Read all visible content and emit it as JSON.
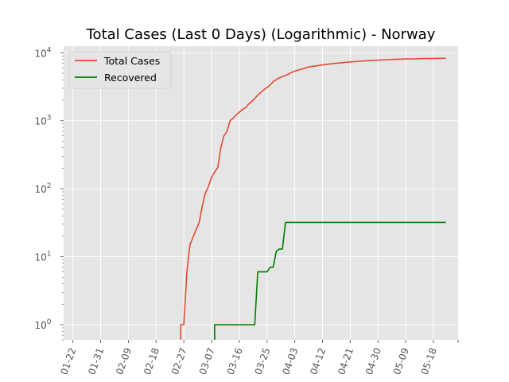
{
  "chart_data": {
    "type": "line",
    "title": "Total Cases (Last 0 Days) (Logarithmic) - Norway",
    "xlabel": "",
    "ylabel": "",
    "yscale": "log",
    "grid": true,
    "legend_position": "top-left",
    "xlim": [
      "2020-01-19",
      "2020-05-26"
    ],
    "ylim": [
      0.6,
      12500
    ],
    "x_tick_labels": [
      "01-22",
      "01-31",
      "02-09",
      "02-18",
      "02-27",
      "03-07",
      "03-16",
      "03-25",
      "04-03",
      "04-12",
      "04-21",
      "04-30",
      "05-09",
      "05-18"
    ],
    "x_tick_dates": [
      "2020-01-22",
      "2020-01-31",
      "2020-02-09",
      "2020-02-18",
      "2020-02-27",
      "2020-03-07",
      "2020-03-16",
      "2020-03-25",
      "2020-04-03",
      "2020-04-12",
      "2020-04-21",
      "2020-04-30",
      "2020-05-09",
      "2020-05-18"
    ],
    "y_ticks": [
      {
        "value": 1,
        "mantissa": "10",
        "exponent": "0"
      },
      {
        "value": 10,
        "mantissa": "10",
        "exponent": "1"
      },
      {
        "value": 100,
        "mantissa": "10",
        "exponent": "2"
      },
      {
        "value": 1000,
        "mantissa": "10",
        "exponent": "3"
      },
      {
        "value": 10000,
        "mantissa": "10",
        "exponent": "4"
      }
    ],
    "series": [
      {
        "name": "Total Cases",
        "color": "#E24A33",
        "points": [
          [
            "2020-02-26",
            0.3
          ],
          [
            "2020-02-26",
            1
          ],
          [
            "2020-02-27",
            1
          ],
          [
            "2020-02-28",
            6
          ],
          [
            "2020-02-29",
            15
          ],
          [
            "2020-03-02",
            25
          ],
          [
            "2020-03-03",
            32
          ],
          [
            "2020-03-04",
            56
          ],
          [
            "2020-03-05",
            87
          ],
          [
            "2020-03-06",
            108
          ],
          [
            "2020-03-07",
            147
          ],
          [
            "2020-03-08",
            176
          ],
          [
            "2020-03-09",
            205
          ],
          [
            "2020-03-10",
            400
          ],
          [
            "2020-03-11",
            598
          ],
          [
            "2020-03-12",
            702
          ],
          [
            "2020-03-13",
            996
          ],
          [
            "2020-03-14",
            1090
          ],
          [
            "2020-03-15",
            1221
          ],
          [
            "2020-03-16",
            1333
          ],
          [
            "2020-03-17",
            1463
          ],
          [
            "2020-03-18",
            1550
          ],
          [
            "2020-03-19",
            1746
          ],
          [
            "2020-03-20",
            1914
          ],
          [
            "2020-03-21",
            2118
          ],
          [
            "2020-03-22",
            2385
          ],
          [
            "2020-03-23",
            2621
          ],
          [
            "2020-03-24",
            2863
          ],
          [
            "2020-03-25",
            3084
          ],
          [
            "2020-03-26",
            3369
          ],
          [
            "2020-03-27",
            3755
          ],
          [
            "2020-03-28",
            4015
          ],
          [
            "2020-03-29",
            4284
          ],
          [
            "2020-03-30",
            4445
          ],
          [
            "2020-03-31",
            4641
          ],
          [
            "2020-04-01",
            4863
          ],
          [
            "2020-04-02",
            5147
          ],
          [
            "2020-04-03",
            5370
          ],
          [
            "2020-04-05",
            5687
          ],
          [
            "2020-04-07",
            6086
          ],
          [
            "2020-04-09",
            6314
          ],
          [
            "2020-04-12",
            6623
          ],
          [
            "2020-04-15",
            6896
          ],
          [
            "2020-04-18",
            7113
          ],
          [
            "2020-04-21",
            7338
          ],
          [
            "2020-04-24",
            7499
          ],
          [
            "2020-04-27",
            7660
          ],
          [
            "2020-04-30",
            7783
          ],
          [
            "2020-05-03",
            7904
          ],
          [
            "2020-05-06",
            8034
          ],
          [
            "2020-05-09",
            8099
          ],
          [
            "2020-05-12",
            8132
          ],
          [
            "2020-05-15",
            8219
          ],
          [
            "2020-05-18",
            8257
          ],
          [
            "2020-05-21",
            8267
          ],
          [
            "2020-05-22",
            8309
          ]
        ]
      },
      {
        "name": "Recovered",
        "color": "#008000",
        "points": [
          [
            "2020-03-08",
            0.3
          ],
          [
            "2020-03-08",
            1
          ],
          [
            "2020-03-14",
            1
          ],
          [
            "2020-03-20",
            1
          ],
          [
            "2020-03-21",
            1
          ],
          [
            "2020-03-22",
            6
          ],
          [
            "2020-03-25",
            6
          ],
          [
            "2020-03-26",
            7
          ],
          [
            "2020-03-27",
            7
          ],
          [
            "2020-03-28",
            12
          ],
          [
            "2020-03-29",
            13
          ],
          [
            "2020-03-30",
            13
          ],
          [
            "2020-03-31",
            32
          ],
          [
            "2020-04-10",
            32
          ],
          [
            "2020-04-30",
            32
          ],
          [
            "2020-05-22",
            32
          ]
        ]
      }
    ]
  }
}
